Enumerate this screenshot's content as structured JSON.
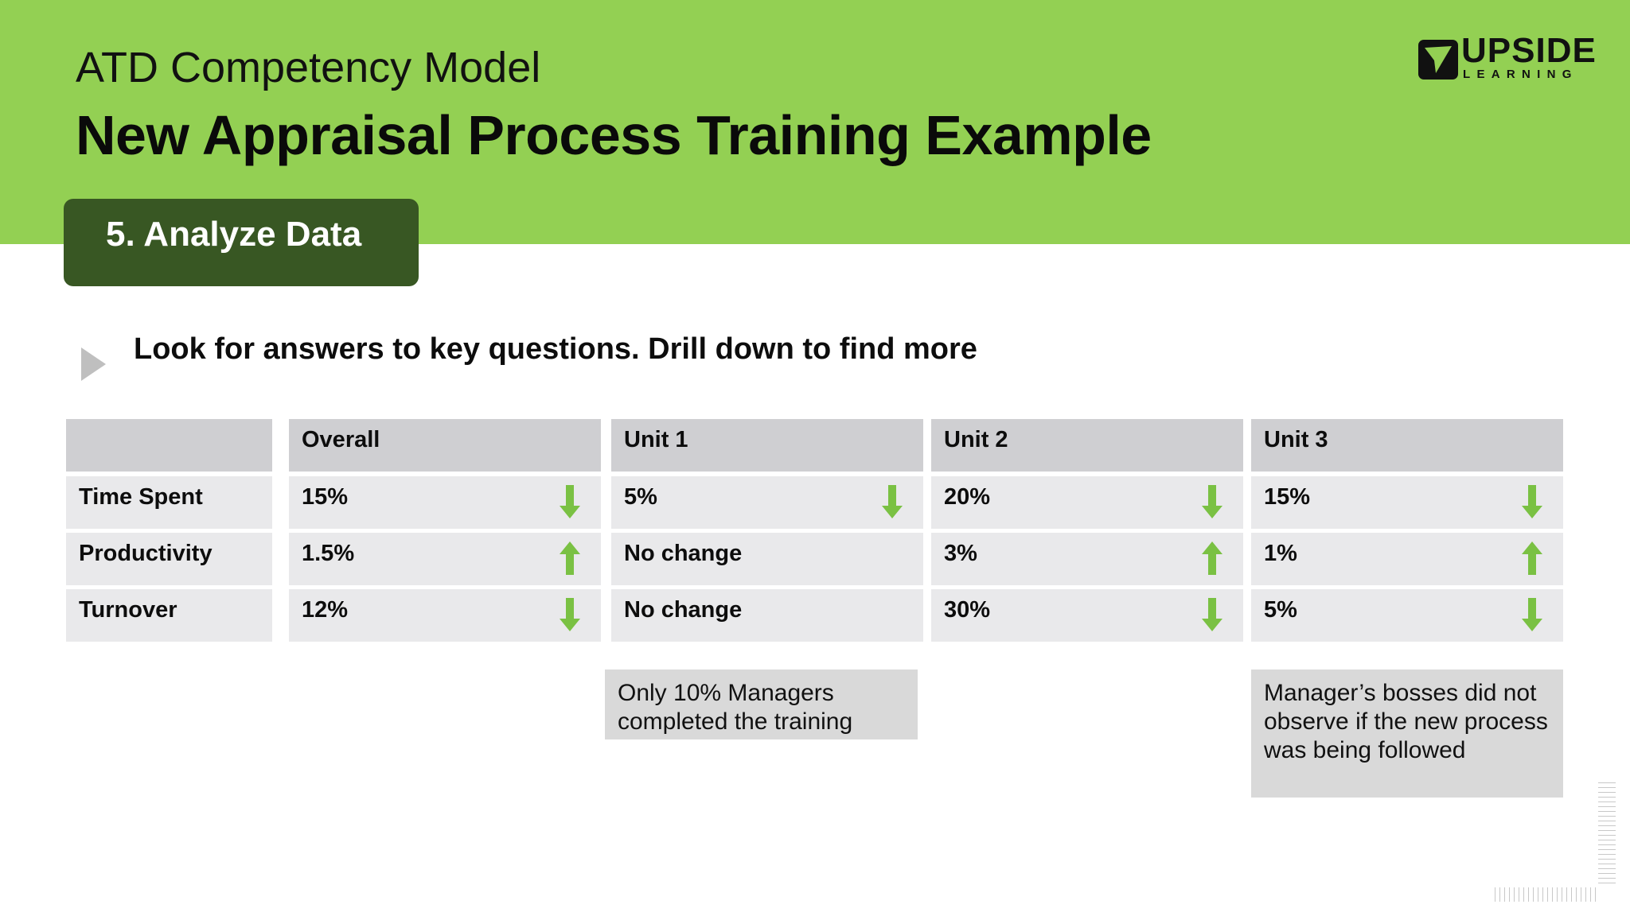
{
  "header": {
    "subtitle": "ATD Competency Model",
    "title": "New Appraisal Process Training Example",
    "band_color": "#93d053"
  },
  "logo": {
    "word": "UPSIDE",
    "sub": "LEARNING"
  },
  "step": {
    "label": "5. Analyze Data",
    "color": "#385723"
  },
  "bullet": {
    "icon": "triangle-right-icon",
    "text": "Look for answers to key questions. Drill down to find more"
  },
  "table": {
    "headers": [
      "",
      "Overall",
      "Unit 1",
      "Unit 2",
      "Unit 3"
    ],
    "rows": [
      {
        "label": "Time Spent",
        "cells": [
          {
            "value": "15%",
            "trend": "down"
          },
          {
            "value": "5%",
            "trend": "down"
          },
          {
            "value": "20%",
            "trend": "down"
          },
          {
            "value": "15%",
            "trend": "down"
          }
        ]
      },
      {
        "label": "Productivity",
        "cells": [
          {
            "value": "1.5%",
            "trend": "up"
          },
          {
            "value": "No change",
            "trend": ""
          },
          {
            "value": "3%",
            "trend": "up"
          },
          {
            "value": "1%",
            "trend": "up"
          }
        ]
      },
      {
        "label": "Turnover",
        "cells": [
          {
            "value": "12%",
            "trend": "down"
          },
          {
            "value": "No change",
            "trend": ""
          },
          {
            "value": "30%",
            "trend": "down"
          },
          {
            "value": "5%",
            "trend": "down"
          }
        ]
      }
    ],
    "arrow_color": "#7ac143"
  },
  "notes": {
    "unit1": "Only 10% Managers completed the training",
    "unit3": "Manager’s bosses did not observe if the new process was being followed"
  }
}
